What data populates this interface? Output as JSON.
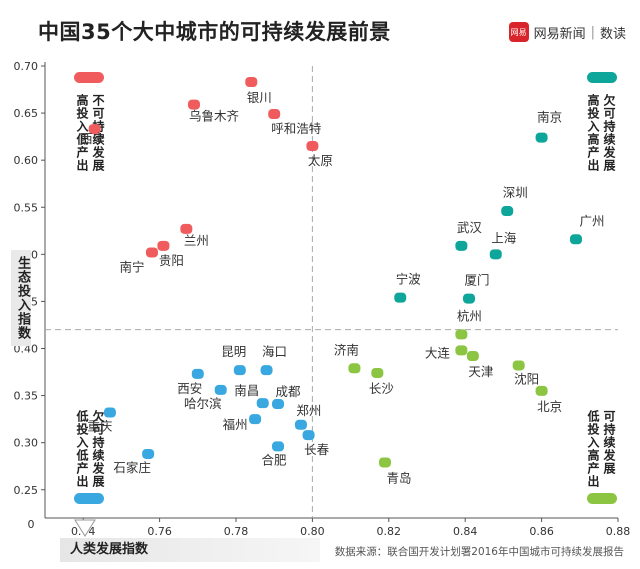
{
  "title": "中国35个大中城市的可持续发展前景",
  "brand": {
    "name": "网易新闻",
    "section": "数读",
    "logo_text": "网易",
    "logo_color": "#d9242b"
  },
  "source": "数据来源：联合国开发计划署2016年中国城市可持续发展报告",
  "chart_data": {
    "type": "scatter",
    "xlabel": "人类发展指数",
    "ylabel": "生态投入指数",
    "xlim": [
      0.73,
      0.88
    ],
    "ylim": [
      0.22,
      0.7
    ],
    "x_ticks": [
      "0.74",
      "0.76",
      "0.78",
      "0.80",
      "0.82",
      "0.84",
      "0.86",
      "0.88"
    ],
    "y_ticks": [
      "0.25",
      "0.30",
      "0.35",
      "0.40",
      "0.45",
      "0.50",
      "0.55",
      "0.60",
      "0.65",
      "0.70"
    ],
    "origin_label": "0",
    "divider_x": 0.8,
    "divider_y": 0.42,
    "colors": {
      "red": "#f05c5e",
      "teal": "#0ea69a",
      "green": "#8bc541",
      "blue": "#3aa8e0"
    },
    "quadrants": [
      {
        "label": "高投入低产出",
        "sub": "不可持续发展",
        "color": "#f05c5e",
        "corner": "top-left"
      },
      {
        "label": "高投入高产出",
        "sub": "欠可持续发展",
        "color": "#0ea69a",
        "corner": "top-right"
      },
      {
        "label": "低投入低产出",
        "sub": "欠可持续发展",
        "color": "#3aa8e0",
        "corner": "bottom-left"
      },
      {
        "label": "低投入高产出",
        "sub": "可持续发展",
        "color": "#8bc541",
        "corner": "bottom-right"
      }
    ],
    "points": [
      {
        "name": "西宁",
        "x": 0.743,
        "y": 0.633,
        "group": "red"
      },
      {
        "name": "乌鲁木齐",
        "x": 0.769,
        "y": 0.659,
        "group": "red"
      },
      {
        "name": "银川",
        "x": 0.784,
        "y": 0.683,
        "group": "red"
      },
      {
        "name": "呼和浩特",
        "x": 0.79,
        "y": 0.649,
        "group": "red"
      },
      {
        "name": "太原",
        "x": 0.8,
        "y": 0.615,
        "group": "red"
      },
      {
        "name": "兰州",
        "x": 0.767,
        "y": 0.527,
        "group": "red"
      },
      {
        "name": "贵阳",
        "x": 0.761,
        "y": 0.509,
        "group": "red"
      },
      {
        "name": "南宁",
        "x": 0.758,
        "y": 0.502,
        "group": "red"
      },
      {
        "name": "南京",
        "x": 0.86,
        "y": 0.624,
        "group": "teal"
      },
      {
        "name": "深圳",
        "x": 0.851,
        "y": 0.546,
        "group": "teal"
      },
      {
        "name": "广州",
        "x": 0.869,
        "y": 0.516,
        "group": "teal"
      },
      {
        "name": "武汉",
        "x": 0.839,
        "y": 0.509,
        "group": "teal"
      },
      {
        "name": "上海",
        "x": 0.848,
        "y": 0.5,
        "group": "teal"
      },
      {
        "name": "宁波",
        "x": 0.823,
        "y": 0.454,
        "group": "teal"
      },
      {
        "name": "厦门",
        "x": 0.841,
        "y": 0.453,
        "group": "teal"
      },
      {
        "name": "杭州",
        "x": 0.839,
        "y": 0.415,
        "group": "green"
      },
      {
        "name": "大连",
        "x": 0.839,
        "y": 0.398,
        "group": "green"
      },
      {
        "name": "天津",
        "x": 0.842,
        "y": 0.392,
        "group": "green"
      },
      {
        "name": "济南",
        "x": 0.811,
        "y": 0.379,
        "group": "green"
      },
      {
        "name": "长沙",
        "x": 0.817,
        "y": 0.374,
        "group": "green"
      },
      {
        "name": "沈阳",
        "x": 0.854,
        "y": 0.382,
        "group": "green"
      },
      {
        "name": "北京",
        "x": 0.86,
        "y": 0.355,
        "group": "green"
      },
      {
        "name": "青岛",
        "x": 0.819,
        "y": 0.279,
        "group": "green"
      },
      {
        "name": "昆明",
        "x": 0.781,
        "y": 0.377,
        "group": "blue"
      },
      {
        "name": "海口",
        "x": 0.788,
        "y": 0.377,
        "group": "blue"
      },
      {
        "name": "西安",
        "x": 0.77,
        "y": 0.373,
        "group": "blue"
      },
      {
        "name": "哈尔滨",
        "x": 0.776,
        "y": 0.356,
        "group": "blue"
      },
      {
        "name": "南昌",
        "x": 0.787,
        "y": 0.342,
        "group": "blue"
      },
      {
        "name": "成都",
        "x": 0.791,
        "y": 0.341,
        "group": "blue"
      },
      {
        "name": "福州",
        "x": 0.785,
        "y": 0.325,
        "group": "blue"
      },
      {
        "name": "郑州",
        "x": 0.797,
        "y": 0.319,
        "group": "blue"
      },
      {
        "name": "长春",
        "x": 0.799,
        "y": 0.308,
        "group": "blue"
      },
      {
        "name": "合肥",
        "x": 0.791,
        "y": 0.296,
        "group": "blue"
      },
      {
        "name": "重庆",
        "x": 0.747,
        "y": 0.332,
        "group": "blue"
      },
      {
        "name": "石家庄",
        "x": 0.757,
        "y": 0.288,
        "group": "blue"
      }
    ]
  }
}
